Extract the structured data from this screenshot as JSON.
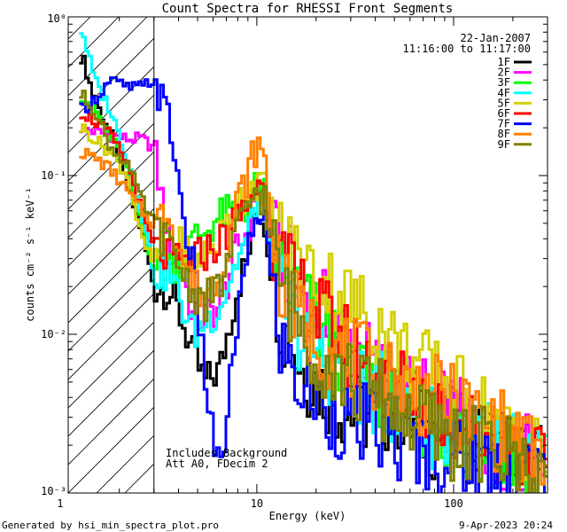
{
  "chart_data": {
    "type": "line",
    "title": "Count Spectra for RHESSI Front Segments",
    "xlabel": "Energy (keV)",
    "ylabel": "counts cm⁻² s⁻¹ keV⁻¹",
    "xscale": "log",
    "yscale": "log",
    "xlim": [
      1.1,
      300
    ],
    "ylim": [
      0.001,
      1.0
    ],
    "x_ticks": [
      {
        "value": 1,
        "label": "1"
      },
      {
        "value": 10,
        "label": "10"
      },
      {
        "value": 100,
        "label": "100"
      }
    ],
    "y_ticks": [
      {
        "value": 1,
        "label": "10⁰"
      },
      {
        "value": 0.1,
        "label": "10⁻¹"
      },
      {
        "value": 0.01,
        "label": "10⁻²"
      },
      {
        "value": 0.001,
        "label": "10⁻³"
      }
    ],
    "hatched_region": {
      "x_start": 1.1,
      "x_end": 3.0
    },
    "vertical_line_x": 3.0,
    "date": "22-Jan-2007",
    "time_range": "11:16:00 to 11:17:00",
    "annotations": [
      "Includes Background",
      "Att A0, FDecim 2"
    ],
    "series": [
      {
        "name": "1F",
        "color": "#000000",
        "values": [
          [
            1.3,
            0.56
          ],
          [
            1.5,
            0.3
          ],
          [
            1.8,
            0.19
          ],
          [
            2.2,
            0.085
          ],
          [
            2.6,
            0.045
          ],
          [
            3.0,
            0.02
          ],
          [
            3.6,
            0.019
          ],
          [
            4.2,
            0.012
          ],
          [
            4.8,
            0.007
          ],
          [
            5.5,
            0.005
          ],
          [
            6.5,
            0.006
          ],
          [
            8.0,
            0.02
          ],
          [
            9.0,
            0.03
          ],
          [
            10.0,
            0.065
          ],
          [
            11.0,
            0.05
          ],
          [
            12.0,
            0.025
          ],
          [
            13.5,
            0.011
          ],
          [
            15.0,
            0.009
          ],
          [
            17.0,
            0.006
          ],
          [
            20.0,
            0.005
          ],
          [
            24.0,
            0.004
          ],
          [
            30.0,
            0.0032
          ],
          [
            40.0,
            0.003
          ],
          [
            50.0,
            0.0035
          ],
          [
            60.0,
            0.0028
          ],
          [
            80.0,
            0.0022
          ],
          [
            100.0,
            0.0025
          ],
          [
            130.0,
            0.002
          ],
          [
            170.0,
            0.0022
          ],
          [
            220.0,
            0.0018
          ],
          [
            280.0,
            0.0015
          ]
        ]
      },
      {
        "name": "2F",
        "color": "#ff00ff",
        "values": [
          [
            1.3,
            0.2
          ],
          [
            1.5,
            0.19
          ],
          [
            1.8,
            0.18
          ],
          [
            2.2,
            0.17
          ],
          [
            2.6,
            0.17
          ],
          [
            3.0,
            0.15
          ],
          [
            3.6,
            0.035
          ],
          [
            4.2,
            0.025
          ],
          [
            4.8,
            0.012
          ],
          [
            5.5,
            0.013
          ],
          [
            6.5,
            0.015
          ],
          [
            8.0,
            0.035
          ],
          [
            9.0,
            0.045
          ],
          [
            10.0,
            0.085
          ],
          [
            11.0,
            0.07
          ],
          [
            12.0,
            0.042
          ],
          [
            13.5,
            0.03
          ],
          [
            15.0,
            0.025
          ],
          [
            17.0,
            0.02
          ],
          [
            20.0,
            0.016
          ],
          [
            24.0,
            0.012
          ],
          [
            30.0,
            0.009
          ],
          [
            40.0,
            0.006
          ],
          [
            50.0,
            0.005
          ],
          [
            60.0,
            0.0042
          ],
          [
            80.0,
            0.0038
          ],
          [
            100.0,
            0.003
          ],
          [
            130.0,
            0.0025
          ],
          [
            170.0,
            0.002
          ],
          [
            220.0,
            0.0018
          ],
          [
            280.0,
            0.0016
          ]
        ]
      },
      {
        "name": "3F",
        "color": "#00ff00",
        "values": [
          [
            1.3,
            0.32
          ],
          [
            1.5,
            0.26
          ],
          [
            1.8,
            0.18
          ],
          [
            2.2,
            0.11
          ],
          [
            2.6,
            0.052
          ],
          [
            3.0,
            0.027
          ],
          [
            3.6,
            0.027
          ],
          [
            4.2,
            0.03
          ],
          [
            4.8,
            0.04
          ],
          [
            5.5,
            0.045
          ],
          [
            6.5,
            0.055
          ],
          [
            8.0,
            0.06
          ],
          [
            9.0,
            0.065
          ],
          [
            10.0,
            0.085
          ],
          [
            11.0,
            0.075
          ],
          [
            12.0,
            0.04
          ],
          [
            13.5,
            0.025
          ],
          [
            15.0,
            0.02
          ],
          [
            17.0,
            0.016
          ],
          [
            20.0,
            0.012
          ],
          [
            24.0,
            0.009
          ],
          [
            30.0,
            0.007
          ],
          [
            40.0,
            0.005
          ],
          [
            50.0,
            0.0042
          ],
          [
            60.0,
            0.0035
          ],
          [
            80.0,
            0.0028
          ],
          [
            100.0,
            0.0024
          ],
          [
            130.0,
            0.002
          ],
          [
            170.0,
            0.0018
          ],
          [
            220.0,
            0.0016
          ],
          [
            280.0,
            0.0014
          ]
        ]
      },
      {
        "name": "4F",
        "color": "#00ffff",
        "values": [
          [
            1.3,
            0.82
          ],
          [
            1.5,
            0.4
          ],
          [
            1.8,
            0.26
          ],
          [
            2.2,
            0.13
          ],
          [
            2.6,
            0.06
          ],
          [
            3.0,
            0.025
          ],
          [
            3.6,
            0.024
          ],
          [
            4.2,
            0.015
          ],
          [
            4.8,
            0.01
          ],
          [
            5.5,
            0.012
          ],
          [
            6.5,
            0.015
          ],
          [
            8.0,
            0.03
          ],
          [
            9.0,
            0.04
          ],
          [
            10.0,
            0.075
          ],
          [
            11.0,
            0.06
          ],
          [
            12.0,
            0.03
          ],
          [
            13.5,
            0.018
          ],
          [
            15.0,
            0.013
          ],
          [
            17.0,
            0.01
          ],
          [
            20.0,
            0.008
          ],
          [
            24.0,
            0.0065
          ],
          [
            30.0,
            0.005
          ],
          [
            40.0,
            0.0042
          ],
          [
            50.0,
            0.0038
          ],
          [
            60.0,
            0.0032
          ],
          [
            80.0,
            0.0026
          ],
          [
            100.0,
            0.0024
          ],
          [
            130.0,
            0.0022
          ],
          [
            170.0,
            0.002
          ],
          [
            220.0,
            0.0017
          ],
          [
            280.0,
            0.0015
          ]
        ]
      },
      {
        "name": "5F",
        "color": "#d4d000",
        "values": [
          [
            1.3,
            0.2
          ],
          [
            1.5,
            0.17
          ],
          [
            1.8,
            0.14
          ],
          [
            2.2,
            0.1
          ],
          [
            2.6,
            0.04
          ],
          [
            3.0,
            0.028
          ],
          [
            3.6,
            0.04
          ],
          [
            4.2,
            0.035
          ],
          [
            4.8,
            0.03
          ],
          [
            5.5,
            0.032
          ],
          [
            6.5,
            0.04
          ],
          [
            8.0,
            0.07
          ],
          [
            9.0,
            0.08
          ],
          [
            10.0,
            0.095
          ],
          [
            11.0,
            0.08
          ],
          [
            12.0,
            0.055
          ],
          [
            13.5,
            0.04
          ],
          [
            15.0,
            0.033
          ],
          [
            17.0,
            0.028
          ],
          [
            20.0,
            0.024
          ],
          [
            24.0,
            0.02
          ],
          [
            30.0,
            0.016
          ],
          [
            40.0,
            0.012
          ],
          [
            50.0,
            0.009
          ],
          [
            60.0,
            0.007
          ],
          [
            80.0,
            0.0055
          ],
          [
            100.0,
            0.0045
          ],
          [
            130.0,
            0.0035
          ],
          [
            170.0,
            0.0028
          ],
          [
            220.0,
            0.0022
          ],
          [
            280.0,
            0.0018
          ]
        ]
      },
      {
        "name": "6F",
        "color": "#ff0000",
        "values": [
          [
            1.3,
            0.25
          ],
          [
            1.5,
            0.22
          ],
          [
            1.8,
            0.18
          ],
          [
            2.2,
            0.12
          ],
          [
            2.6,
            0.06
          ],
          [
            3.0,
            0.035
          ],
          [
            3.6,
            0.03
          ],
          [
            4.2,
            0.028
          ],
          [
            4.8,
            0.03
          ],
          [
            5.5,
            0.033
          ],
          [
            6.5,
            0.038
          ],
          [
            8.0,
            0.055
          ],
          [
            9.0,
            0.065
          ],
          [
            10.0,
            0.09
          ],
          [
            11.0,
            0.075
          ],
          [
            12.0,
            0.045
          ],
          [
            13.5,
            0.028
          ],
          [
            15.0,
            0.022
          ],
          [
            17.0,
            0.018
          ],
          [
            20.0,
            0.014
          ],
          [
            24.0,
            0.011
          ],
          [
            30.0,
            0.008
          ],
          [
            40.0,
            0.006
          ],
          [
            50.0,
            0.005
          ],
          [
            60.0,
            0.0042
          ],
          [
            80.0,
            0.0035
          ],
          [
            100.0,
            0.0028
          ],
          [
            130.0,
            0.0024
          ],
          [
            170.0,
            0.002
          ],
          [
            220.0,
            0.0018
          ],
          [
            280.0,
            0.0015
          ]
        ]
      },
      {
        "name": "7F",
        "color": "#0000ff",
        "values": [
          [
            1.3,
            0.26
          ],
          [
            1.5,
            0.3
          ],
          [
            1.8,
            0.4
          ],
          [
            2.2,
            0.36
          ],
          [
            2.6,
            0.36
          ],
          [
            3.0,
            0.4
          ],
          [
            3.6,
            0.22
          ],
          [
            4.2,
            0.06
          ],
          [
            4.8,
            0.025
          ],
          [
            5.5,
            0.005
          ],
          [
            6.5,
            0.0012
          ],
          [
            8.0,
            0.013
          ],
          [
            9.0,
            0.03
          ],
          [
            10.0,
            0.06
          ],
          [
            11.0,
            0.055
          ],
          [
            12.0,
            0.018
          ],
          [
            13.5,
            0.008
          ],
          [
            15.0,
            0.006
          ],
          [
            17.0,
            0.0045
          ],
          [
            20.0,
            0.004
          ],
          [
            24.0,
            0.0032
          ],
          [
            30.0,
            0.0028
          ],
          [
            40.0,
            0.0025
          ],
          [
            50.0,
            0.0022
          ],
          [
            60.0,
            0.002
          ],
          [
            80.0,
            0.0018
          ],
          [
            100.0,
            0.0017
          ],
          [
            130.0,
            0.0016
          ],
          [
            170.0,
            0.0015
          ],
          [
            220.0,
            0.0014
          ],
          [
            280.0,
            0.0013
          ]
        ]
      },
      {
        "name": "8F",
        "color": "#ff8000",
        "values": [
          [
            1.3,
            0.14
          ],
          [
            1.5,
            0.13
          ],
          [
            1.8,
            0.11
          ],
          [
            2.2,
            0.08
          ],
          [
            2.6,
            0.06
          ],
          [
            3.0,
            0.05
          ],
          [
            3.6,
            0.06
          ],
          [
            4.2,
            0.03
          ],
          [
            4.8,
            0.02
          ],
          [
            5.5,
            0.018
          ],
          [
            6.5,
            0.025
          ],
          [
            8.0,
            0.07
          ],
          [
            9.0,
            0.1
          ],
          [
            10.0,
            0.16
          ],
          [
            11.0,
            0.12
          ],
          [
            12.0,
            0.045
          ],
          [
            13.5,
            0.02
          ],
          [
            15.0,
            0.015
          ],
          [
            17.0,
            0.012
          ],
          [
            20.0,
            0.01
          ],
          [
            24.0,
            0.008
          ],
          [
            30.0,
            0.007
          ],
          [
            40.0,
            0.006
          ],
          [
            50.0,
            0.005
          ],
          [
            60.0,
            0.0045
          ],
          [
            80.0,
            0.004
          ],
          [
            100.0,
            0.0035
          ],
          [
            130.0,
            0.003
          ],
          [
            170.0,
            0.0025
          ],
          [
            220.0,
            0.002
          ],
          [
            280.0,
            0.0016
          ]
        ]
      },
      {
        "name": "9F",
        "color": "#808000",
        "values": [
          [
            1.3,
            0.32
          ],
          [
            1.5,
            0.26
          ],
          [
            1.8,
            0.15
          ],
          [
            2.2,
            0.12
          ],
          [
            2.6,
            0.07
          ],
          [
            3.0,
            0.05
          ],
          [
            3.6,
            0.035
          ],
          [
            4.2,
            0.025
          ],
          [
            4.8,
            0.018
          ],
          [
            5.5,
            0.016
          ],
          [
            6.5,
            0.02
          ],
          [
            8.0,
            0.045
          ],
          [
            9.0,
            0.06
          ],
          [
            10.0,
            0.085
          ],
          [
            11.0,
            0.07
          ],
          [
            12.0,
            0.035
          ],
          [
            13.5,
            0.02
          ],
          [
            15.0,
            0.015
          ],
          [
            17.0,
            0.011
          ],
          [
            20.0,
            0.008
          ],
          [
            24.0,
            0.0065
          ],
          [
            30.0,
            0.005
          ],
          [
            40.0,
            0.004
          ],
          [
            50.0,
            0.0035
          ],
          [
            60.0,
            0.003
          ],
          [
            80.0,
            0.0025
          ],
          [
            100.0,
            0.0022
          ],
          [
            130.0,
            0.002
          ],
          [
            170.0,
            0.0018
          ],
          [
            220.0,
            0.0016
          ],
          [
            280.0,
            0.0014
          ]
        ]
      }
    ]
  },
  "footer": {
    "generated_by": "Generated by hsi_min_spectra_plot.pro",
    "timestamp": "9-Apr-2023 20:24"
  }
}
